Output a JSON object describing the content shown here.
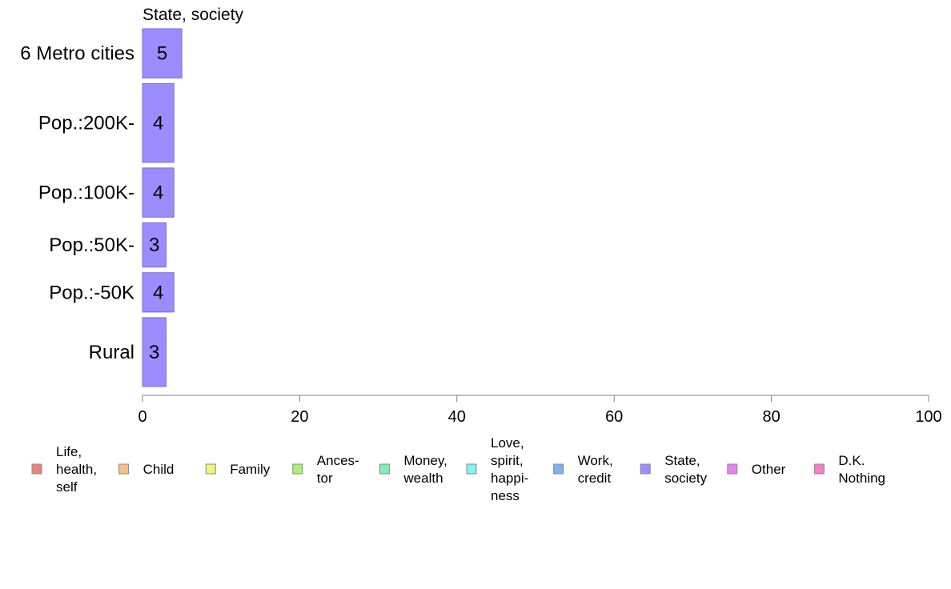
{
  "chart_data": {
    "type": "bar",
    "orientation": "horizontal",
    "title": "State, society",
    "categories": [
      "6 Metro cities",
      "Pop.:200K-",
      "Pop.:100K-",
      "Pop.:50K-",
      "Pop.:-50K",
      "Rural"
    ],
    "series": [
      {
        "name": "State, society",
        "values": [
          5,
          4,
          4,
          3,
          4,
          3
        ],
        "color": "#9b8cff"
      }
    ],
    "bar_value_labels": [
      "5",
      "4",
      "4",
      "3",
      "4",
      "3"
    ],
    "category_weights": [
      1.0,
      1.6,
      1.0,
      0.9,
      0.8,
      1.4
    ],
    "xlim": [
      0,
      100
    ],
    "xticks": [
      0,
      20,
      40,
      60,
      80,
      100
    ],
    "grid": false,
    "legend_position": "bottom",
    "legend": [
      {
        "label": [
          "Life,",
          "health,",
          "self"
        ],
        "color": "#f08080"
      },
      {
        "label": [
          "Child"
        ],
        "color": "#f7c080"
      },
      {
        "label": [
          "Family"
        ],
        "color": "#eef57a"
      },
      {
        "label": [
          "Ances-",
          "tor"
        ],
        "color": "#a8f07e"
      },
      {
        "label": [
          "Money,",
          "wealth"
        ],
        "color": "#7ef0b0"
      },
      {
        "label": [
          "Love,",
          "spirit,",
          "happi-",
          "ness"
        ],
        "color": "#80f5f5"
      },
      {
        "label": [
          "Work,",
          "credit"
        ],
        "color": "#80b0f5"
      },
      {
        "label": [
          "State,",
          "society"
        ],
        "color": "#9b8cff"
      },
      {
        "label": [
          "Other"
        ],
        "color": "#e680f5"
      },
      {
        "label": [
          "D.K.",
          "Nothing"
        ],
        "color": "#f580c8"
      }
    ]
  }
}
